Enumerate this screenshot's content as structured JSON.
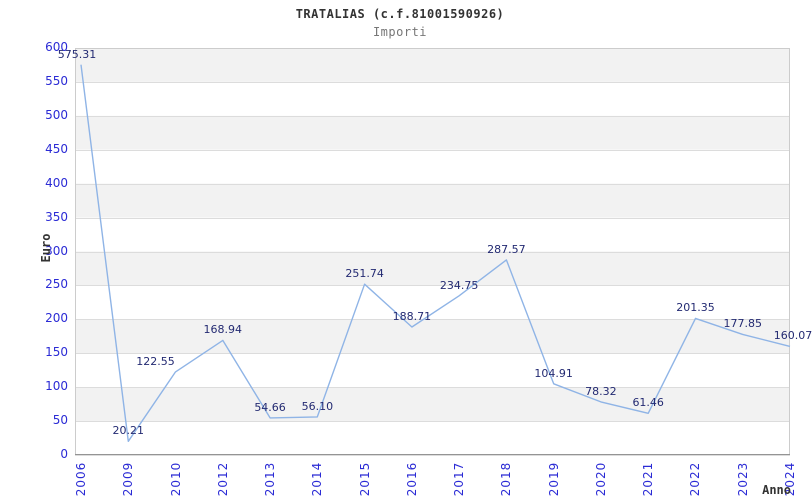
{
  "chart_data": {
    "type": "line",
    "title": "TRATALIAS (c.f.81001590926)",
    "subtitle": "Importi",
    "xlabel": "Anno",
    "ylabel": "Euro",
    "categories": [
      "2006",
      "2009",
      "2010",
      "2012",
      "2013",
      "2014",
      "2015",
      "2016",
      "2017",
      "2018",
      "2019",
      "2020",
      "2021",
      "2022",
      "2023",
      "2024"
    ],
    "values": [
      575.31,
      20.21,
      122.55,
      168.94,
      54.66,
      56.1,
      251.74,
      188.71,
      234.75,
      287.57,
      104.91,
      78.32,
      61.46,
      201.35,
      177.85,
      160.07
    ],
    "point_labels": [
      "575.31",
      "20.21",
      "122.55",
      "168.94",
      "54.66",
      "56.10",
      "251.74",
      "188.71",
      "234.75",
      "287.57",
      "104.91",
      "78.32",
      "61.46",
      "201.35",
      "177.85",
      "160.07"
    ],
    "ylim": [
      0,
      600
    ],
    "ytick_step": 50,
    "grid": true,
    "background_bands": true,
    "legend_position": "none"
  },
  "colors": {
    "line": "#8fb4e6",
    "tick_label": "#2b2bd5",
    "data_label": "#232a72",
    "band_gray": "#f2f2f2",
    "band_white": "#ffffff",
    "gridline": "#dcdcdc",
    "plot_border": "#cccccc",
    "axis_line": "#949494",
    "title": "#333333",
    "subtitle": "#777777",
    "axis_title": "#333333",
    "background": "#ffffff"
  }
}
